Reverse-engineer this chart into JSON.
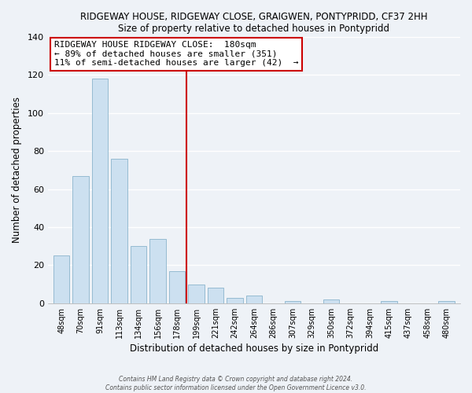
{
  "title1": "RIDGEWAY HOUSE, RIDGEWAY CLOSE, GRAIGWEN, PONTYPRIDD, CF37 2HH",
  "title2": "Size of property relative to detached houses in Pontypridd",
  "xlabel": "Distribution of detached houses by size in Pontypridd",
  "ylabel": "Number of detached properties",
  "categories": [
    "48sqm",
    "70sqm",
    "91sqm",
    "113sqm",
    "134sqm",
    "156sqm",
    "178sqm",
    "199sqm",
    "221sqm",
    "242sqm",
    "264sqm",
    "286sqm",
    "307sqm",
    "329sqm",
    "350sqm",
    "372sqm",
    "394sqm",
    "415sqm",
    "437sqm",
    "458sqm",
    "480sqm"
  ],
  "values": [
    25,
    67,
    118,
    76,
    30,
    34,
    17,
    10,
    8,
    3,
    4,
    0,
    1,
    0,
    2,
    0,
    0,
    1,
    0,
    0,
    1
  ],
  "bar_color": "#cce0f0",
  "bar_edge_color": "#8ab4cc",
  "highlight_index": 6,
  "ylim": [
    0,
    140
  ],
  "yticks": [
    0,
    20,
    40,
    60,
    80,
    100,
    120,
    140
  ],
  "annotation_line1": "RIDGEWAY HOUSE RIDGEWAY CLOSE:  180sqm",
  "annotation_line2": "← 89% of detached houses are smaller (351)",
  "annotation_line3": "11% of semi-detached houses are larger (42)  →",
  "footnote1": "Contains HM Land Registry data © Crown copyright and database right 2024.",
  "footnote2": "Contains public sector information licensed under the Open Government Licence v3.0.",
  "background_color": "#eef2f7",
  "grid_color": "#ffffff",
  "annotation_box_color": "#ffffff",
  "vline_color": "#cc0000"
}
